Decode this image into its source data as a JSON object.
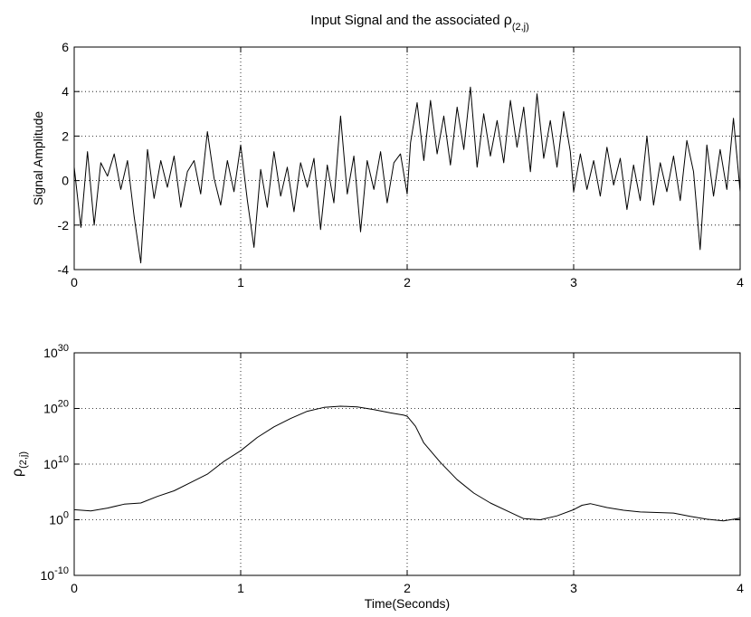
{
  "chart_data": [
    {
      "type": "line",
      "title_main": "Input Signal and the associated ",
      "title_sym": "ρ",
      "title_sub": "(2,j)",
      "xlabel": "",
      "ylabel": "Signal Amplitude",
      "xlim": [
        0,
        4
      ],
      "ylim": [
        -4,
        6
      ],
      "x_ticks": [
        "0",
        "1",
        "2",
        "3",
        "4"
      ],
      "y_ticks": [
        "-4",
        "-2",
        "0",
        "2",
        "4",
        "6"
      ],
      "grid": true,
      "series": [
        {
          "x": [
            0.0,
            0.04,
            0.08,
            0.12,
            0.16,
            0.2,
            0.24,
            0.28,
            0.32,
            0.36,
            0.4,
            0.44,
            0.48,
            0.52,
            0.56,
            0.6,
            0.64,
            0.68,
            0.72,
            0.76,
            0.8,
            0.84,
            0.88,
            0.92,
            0.96,
            1.0,
            1.04,
            1.08,
            1.12,
            1.16,
            1.2,
            1.24,
            1.28,
            1.32,
            1.36,
            1.4,
            1.44,
            1.48,
            1.52,
            1.56,
            1.6,
            1.64,
            1.68,
            1.72,
            1.76,
            1.8,
            1.84,
            1.88,
            1.92,
            1.96,
            2.0,
            2.02,
            2.06,
            2.1,
            2.14,
            2.18,
            2.22,
            2.26,
            2.3,
            2.34,
            2.38,
            2.42,
            2.46,
            2.5,
            2.54,
            2.58,
            2.62,
            2.66,
            2.7,
            2.74,
            2.78,
            2.82,
            2.86,
            2.9,
            2.94,
            2.98,
            3.0,
            3.04,
            3.08,
            3.12,
            3.16,
            3.2,
            3.24,
            3.28,
            3.32,
            3.36,
            3.4,
            3.44,
            3.48,
            3.52,
            3.56,
            3.6,
            3.64,
            3.68,
            3.72,
            3.76,
            3.8,
            3.84,
            3.88,
            3.92,
            3.96,
            4.0
          ],
          "y": [
            0.6,
            -2.1,
            1.3,
            -2.0,
            0.8,
            0.2,
            1.2,
            -0.4,
            0.9,
            -1.6,
            -3.7,
            1.4,
            -0.8,
            0.9,
            -0.3,
            1.1,
            -1.2,
            0.4,
            0.9,
            -0.6,
            2.2,
            0.1,
            -1.1,
            0.9,
            -0.5,
            1.6,
            -0.9,
            -3.0,
            0.5,
            -1.2,
            1.3,
            -0.7,
            0.6,
            -1.4,
            0.8,
            -0.3,
            1.0,
            -2.2,
            0.7,
            -1.0,
            2.9,
            -0.6,
            1.1,
            -2.3,
            0.9,
            -0.4,
            1.3,
            -1.0,
            0.8,
            1.2,
            -0.6,
            1.7,
            3.5,
            0.9,
            3.6,
            1.2,
            2.9,
            0.7,
            3.3,
            1.4,
            4.2,
            0.6,
            3.0,
            1.1,
            2.7,
            0.8,
            3.6,
            1.5,
            3.3,
            0.4,
            3.9,
            1.0,
            2.7,
            0.6,
            3.1,
            1.3,
            -0.5,
            1.2,
            -0.4,
            0.9,
            -0.7,
            1.5,
            -0.2,
            1.0,
            -1.3,
            0.7,
            -0.9,
            2.0,
            -1.1,
            0.8,
            -0.5,
            1.1,
            -0.9,
            1.8,
            0.4,
            -3.1,
            1.6,
            -0.7,
            1.4,
            -0.4,
            2.8,
            -0.5
          ]
        }
      ]
    },
    {
      "type": "line",
      "title": "",
      "xlabel": "Time(Seconds)",
      "ylabel_sym": "ρ",
      "ylabel_sub": "(2,j)",
      "xlim": [
        0,
        4
      ],
      "ylim": [
        -10,
        30
      ],
      "y_scale": "log",
      "x_ticks": [
        "0",
        "1",
        "2",
        "3",
        "4"
      ],
      "y_ticks": [
        {
          "base": "10",
          "exp": "-10"
        },
        {
          "base": "10",
          "exp": "0"
        },
        {
          "base": "10",
          "exp": "10"
        },
        {
          "base": "10",
          "exp": "20"
        },
        {
          "base": "10",
          "exp": "30"
        }
      ],
      "grid": true,
      "series": [
        {
          "x": [
            0.0,
            0.1,
            0.2,
            0.3,
            0.4,
            0.5,
            0.6,
            0.7,
            0.8,
            0.9,
            1.0,
            1.1,
            1.2,
            1.3,
            1.4,
            1.5,
            1.6,
            1.7,
            1.8,
            1.9,
            1.98,
            2.0,
            2.05,
            2.1,
            2.2,
            2.3,
            2.4,
            2.5,
            2.6,
            2.7,
            2.8,
            2.9,
            3.0,
            3.05,
            3.1,
            3.2,
            3.3,
            3.4,
            3.5,
            3.6,
            3.7,
            3.8,
            3.9,
            4.0
          ],
          "y": [
            1.8,
            1.6,
            2.1,
            2.8,
            3.0,
            4.2,
            5.2,
            6.7,
            8.2,
            10.5,
            12.4,
            14.8,
            16.7,
            18.2,
            19.5,
            20.2,
            20.4,
            20.3,
            19.8,
            19.2,
            18.8,
            18.6,
            16.8,
            13.8,
            10.3,
            7.2,
            4.8,
            3.0,
            1.6,
            0.2,
            0.0,
            0.7,
            1.8,
            2.6,
            2.9,
            2.2,
            1.7,
            1.4,
            1.3,
            1.2,
            0.6,
            0.1,
            -0.2,
            0.3
          ]
        }
      ]
    }
  ]
}
